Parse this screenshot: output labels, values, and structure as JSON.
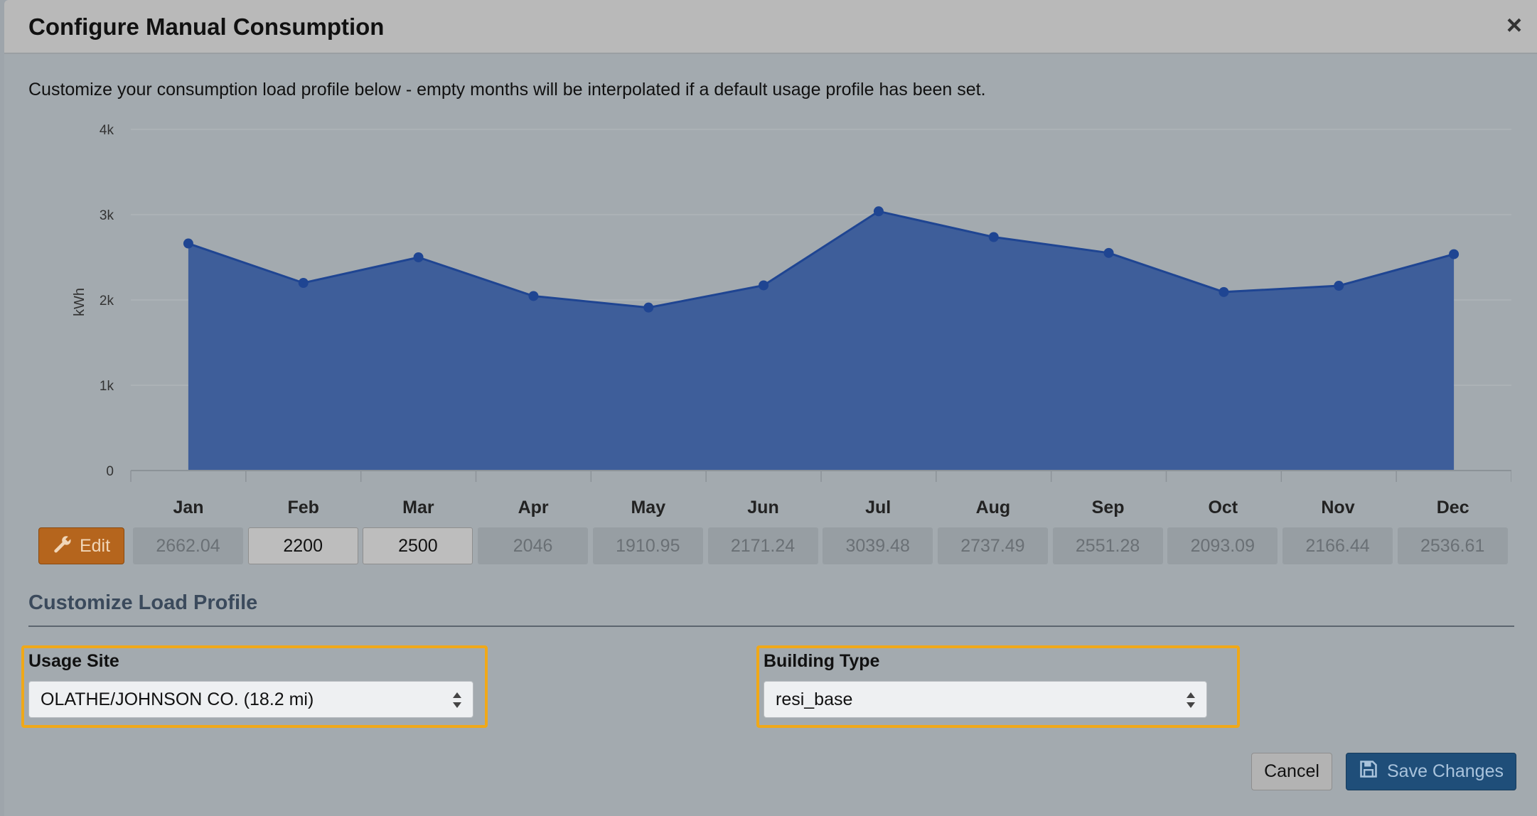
{
  "modal": {
    "title": "Configure Manual Consumption",
    "close_label": "×",
    "description": "Customize your consumption load profile below - empty months will be interpolated if a default usage profile has been set."
  },
  "chart_data": {
    "type": "area",
    "categories": [
      "Jan",
      "Feb",
      "Mar",
      "Apr",
      "May",
      "Jun",
      "Jul",
      "Aug",
      "Sep",
      "Oct",
      "Nov",
      "Dec"
    ],
    "values": [
      2662.04,
      2200,
      2500,
      2046,
      1910.95,
      2171.24,
      3039.48,
      2737.49,
      2551.28,
      2093.09,
      2166.44,
      2536.61
    ],
    "ylabel": "kWh",
    "ylim": [
      0,
      4000
    ],
    "yticks": [
      0,
      1000,
      2000,
      3000,
      4000
    ],
    "ytick_labels": [
      "0",
      "1k",
      "2k",
      "3k",
      "4k"
    ],
    "grid": true,
    "fill_color": "#3e5e9a",
    "line_color": "#1f4592"
  },
  "months": [
    {
      "label": "Jan",
      "value": "2662.04",
      "editable": false
    },
    {
      "label": "Feb",
      "value": "2200",
      "editable": true
    },
    {
      "label": "Mar",
      "value": "2500",
      "editable": true
    },
    {
      "label": "Apr",
      "value": "2046",
      "editable": false
    },
    {
      "label": "May",
      "value": "1910.95",
      "editable": false
    },
    {
      "label": "Jun",
      "value": "2171.24",
      "editable": false
    },
    {
      "label": "Jul",
      "value": "3039.48",
      "editable": false
    },
    {
      "label": "Aug",
      "value": "2737.49",
      "editable": false
    },
    {
      "label": "Sep",
      "value": "2551.28",
      "editable": false
    },
    {
      "label": "Oct",
      "value": "2093.09",
      "editable": false
    },
    {
      "label": "Nov",
      "value": "2166.44",
      "editable": false
    },
    {
      "label": "Dec",
      "value": "2536.61",
      "editable": false
    }
  ],
  "edit_button": {
    "label": "Edit",
    "icon": "wrench-icon"
  },
  "section": {
    "title": "Customize Load Profile"
  },
  "usage_site": {
    "label": "Usage Site",
    "value": "OLATHE/JOHNSON CO. (18.2 mi)"
  },
  "building_type": {
    "label": "Building Type",
    "value": "resi_base"
  },
  "footer": {
    "cancel_label": "Cancel",
    "save_label": "Save Changes",
    "save_icon": "floppy-disk-icon"
  },
  "colors": {
    "highlight": "#f0a818",
    "edit_button": "#b5651d",
    "save_button": "#1f4e79"
  }
}
